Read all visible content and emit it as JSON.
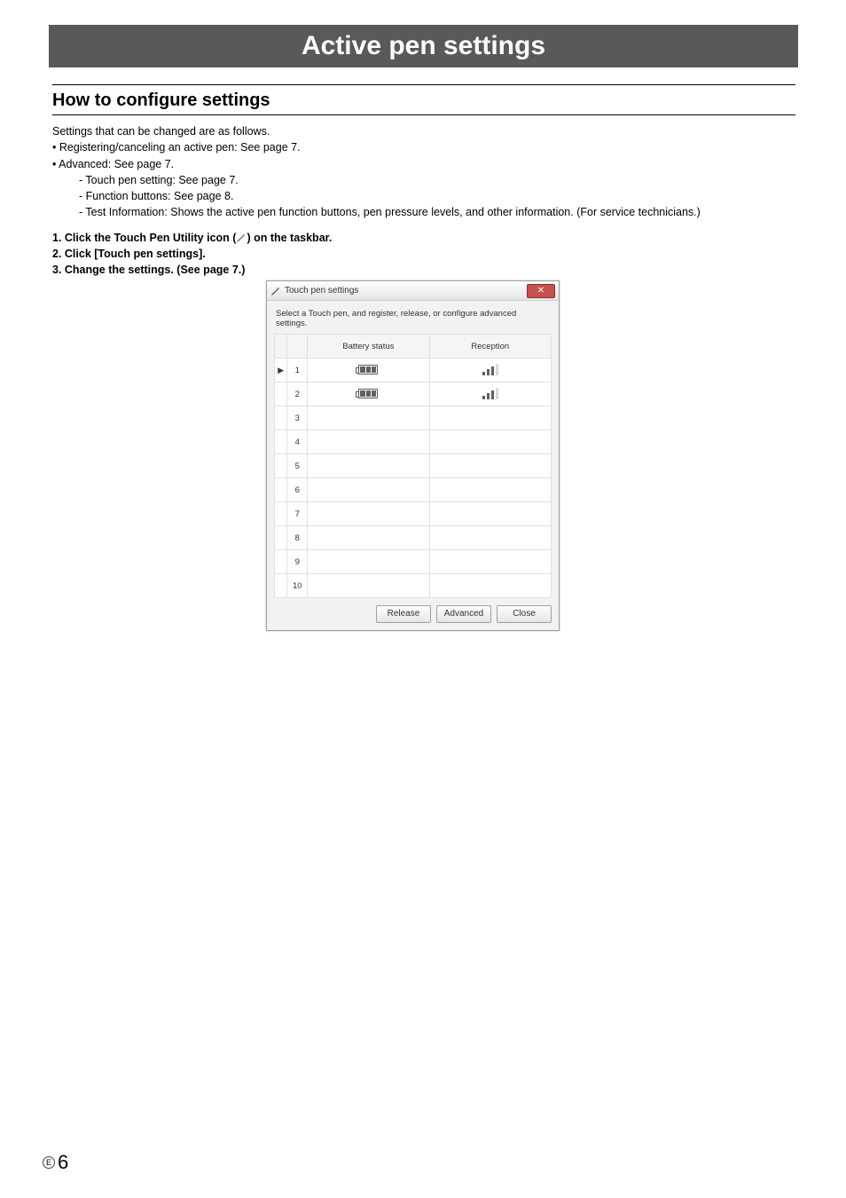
{
  "header": {
    "title": "Active pen settings"
  },
  "section": {
    "heading": "How to configure settings"
  },
  "intro": {
    "lead": "Settings that can be changed are as follows.",
    "b1": "•  Registering/canceling an active pen: See page 7.",
    "b2": "•  Advanced: See page 7.",
    "s1": "- Touch pen setting: See page 7.",
    "s2": "- Function buttons: See page 8.",
    "s3": "- Test Information: Shows the active pen function buttons, pen pressure levels, and other information. (For service technicians.)"
  },
  "steps": {
    "s1a": "1.  Click the Touch Pen Utility icon (",
    "s1b": ") on the taskbar.",
    "s2": "2.  Click [Touch pen settings].",
    "s3": "3.  Change the settings. (See page 7.)"
  },
  "dialog": {
    "title": "Touch pen settings",
    "desc": "Select a Touch pen, and register, release, or configure advanced settings.",
    "cols": {
      "battery": "Battery status",
      "signal": "Reception"
    },
    "rows": [
      {
        "n": "1",
        "battery": 3,
        "signal": 3,
        "selected": true
      },
      {
        "n": "2",
        "battery": 3,
        "signal": 3,
        "selected": false
      },
      {
        "n": "3",
        "battery": null,
        "signal": null,
        "selected": false
      },
      {
        "n": "4",
        "battery": null,
        "signal": null,
        "selected": false
      },
      {
        "n": "5",
        "battery": null,
        "signal": null,
        "selected": false
      },
      {
        "n": "6",
        "battery": null,
        "signal": null,
        "selected": false
      },
      {
        "n": "7",
        "battery": null,
        "signal": null,
        "selected": false
      },
      {
        "n": "8",
        "battery": null,
        "signal": null,
        "selected": false
      },
      {
        "n": "9",
        "battery": null,
        "signal": null,
        "selected": false
      },
      {
        "n": "10",
        "battery": null,
        "signal": null,
        "selected": false
      }
    ],
    "buttons": {
      "release": "Release",
      "advanced": "Advanced",
      "close": "Close"
    }
  },
  "footer": {
    "lang": "E",
    "page": "6"
  }
}
